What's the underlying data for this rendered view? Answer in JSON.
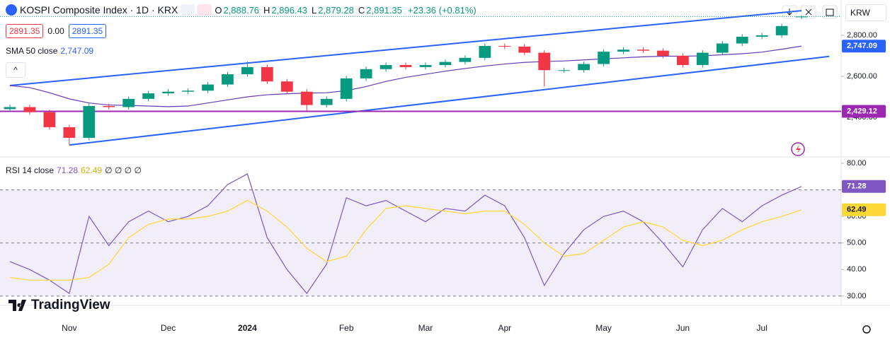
{
  "header": {
    "symbol": "KOSPI Composite Index · 1D · KRX",
    "ohlc": [
      {
        "label": "O",
        "value": "2,888.76"
      },
      {
        "label": "H",
        "value": "2,896.43"
      },
      {
        "label": "L",
        "value": "2,879.28"
      },
      {
        "label": "C",
        "value": "2,891.35"
      }
    ],
    "change": "+23.36 (+0.81%)",
    "bid": "2891.35",
    "spread": "0.00",
    "ask": "2891.35",
    "currency": "KRW",
    "logo": "TradingView"
  },
  "chart_data": [
    {
      "type": "candlestick",
      "categories": [
        null,
        null,
        null,
        "Nov",
        null,
        null,
        null,
        null,
        "Dec",
        null,
        null,
        null,
        "2024",
        null,
        null,
        null,
        null,
        "Feb",
        null,
        null,
        null,
        "Mar",
        null,
        null,
        null,
        "Apr",
        null,
        null,
        null,
        null,
        "May",
        null,
        null,
        null,
        "Jun",
        null,
        null,
        null,
        "Jul",
        null,
        null
      ],
      "open": [
        2440,
        2450,
        2425,
        2352,
        2300,
        2455,
        2450,
        2490,
        2517,
        2525,
        2530,
        2560,
        2610,
        2645,
        2575,
        2525,
        2460,
        2490,
        2590,
        2635,
        2655,
        2645,
        2655,
        2670,
        2690,
        2748,
        2745,
        2715,
        2630,
        2630,
        2660,
        2720,
        2730,
        2725,
        2700,
        2655,
        2715,
        2760,
        2793,
        2800,
        2888.76
      ],
      "high": [
        2462,
        2462,
        2437,
        2364,
        2467,
        2467,
        2502,
        2529,
        2537,
        2542,
        2572,
        2622,
        2672,
        2657,
        2587,
        2537,
        2502,
        2602,
        2647,
        2667,
        2667,
        2667,
        2682,
        2702,
        2760,
        2760,
        2757,
        2727,
        2642,
        2672,
        2732,
        2742,
        2742,
        2737,
        2712,
        2727,
        2772,
        2805,
        2812,
        2857,
        2896.43
      ],
      "low": [
        2428,
        2413,
        2340,
        2268,
        2288,
        2438,
        2438,
        2478,
        2505,
        2513,
        2518,
        2548,
        2598,
        2563,
        2513,
        2429,
        2448,
        2478,
        2578,
        2623,
        2633,
        2633,
        2643,
        2658,
        2678,
        2733,
        2703,
        2550,
        2618,
        2618,
        2648,
        2708,
        2713,
        2688,
        2643,
        2643,
        2703,
        2748,
        2781,
        2788,
        2879.28
      ],
      "close": [
        2450,
        2425,
        2352,
        2300,
        2455,
        2450,
        2490,
        2517,
        2525,
        2530,
        2560,
        2610,
        2645,
        2575,
        2525,
        2460,
        2490,
        2590,
        2635,
        2655,
        2645,
        2655,
        2670,
        2690,
        2748,
        2745,
        2715,
        2630,
        2630,
        2660,
        2720,
        2730,
        2725,
        2700,
        2655,
        2715,
        2760,
        2793,
        2800,
        2845,
        2891.35
      ],
      "up_color": "#089981",
      "down_color": "#f23645",
      "series": [
        {
          "name": "SMA 50 close",
          "color": "#673ab7",
          "badge": "2,747.09",
          "values": [
            2555,
            2545,
            2520,
            2490,
            2470,
            2460,
            2458,
            2455,
            2452,
            2455,
            2470,
            2485,
            2500,
            2510,
            2515,
            2518,
            2520,
            2530,
            2550,
            2575,
            2595,
            2610,
            2625,
            2638,
            2650,
            2660,
            2668,
            2672,
            2675,
            2680,
            2685,
            2690,
            2695,
            2698,
            2698,
            2700,
            2705,
            2710,
            2718,
            2732,
            2747.09
          ]
        }
      ],
      "trendlines": [
        {
          "from": [
            0,
            2555
          ],
          "to": [
            40,
            2920
          ],
          "color": "#2962ff"
        },
        {
          "from": [
            3,
            2265
          ],
          "to": [
            41.4,
            2697
          ],
          "color": "#2962ff"
        }
      ],
      "hline": {
        "value": 2429.12,
        "label": "2,429.12",
        "color": "#9c27b0"
      },
      "last_price_line": true,
      "ylim": [
        2207,
        2972
      ],
      "yticks": [
        {
          "value": 2400,
          "label": "2,400.00"
        },
        {
          "value": 2600,
          "label": "2,600.00"
        },
        {
          "value": 2800,
          "label": "2,800.00"
        }
      ]
    },
    {
      "type": "line",
      "title": "RSI 14 close",
      "extras": "∅ ∅ ∅ ∅",
      "series": [
        {
          "color": "#7e57c2",
          "badge": "71.28",
          "values": [
            43,
            40,
            36,
            31,
            60,
            49,
            58,
            62,
            58,
            60,
            64,
            72,
            76,
            52,
            40,
            31,
            42,
            67,
            64,
            66,
            62,
            58,
            63,
            62,
            68,
            64,
            52,
            34,
            46,
            55,
            60,
            62,
            58,
            50,
            41,
            55,
            63,
            58,
            64,
            68,
            71.28
          ]
        },
        {
          "color": "#fdd835",
          "badge": "62.49",
          "values": [
            37,
            36,
            36,
            36,
            37,
            42,
            52,
            57,
            59,
            59,
            60,
            62,
            66,
            62,
            56,
            48,
            43,
            45,
            55,
            63,
            64,
            63,
            62,
            61,
            62,
            62,
            57,
            50,
            45,
            46,
            51,
            56,
            58,
            56,
            51,
            49,
            51,
            55,
            58,
            60,
            62.49
          ]
        }
      ],
      "levels": [
        70,
        50,
        30
      ],
      "band_color": "#7e57c2",
      "ylim": [
        26.5,
        82.4
      ],
      "yticks": [
        {
          "value": 30,
          "label": "30.00"
        },
        {
          "value": 40,
          "label": "40.00"
        },
        {
          "value": 50,
          "label": "50.00"
        },
        {
          "value": 60,
          "label": "60.00"
        },
        {
          "value": 80,
          "label": "80.00"
        }
      ]
    }
  ]
}
